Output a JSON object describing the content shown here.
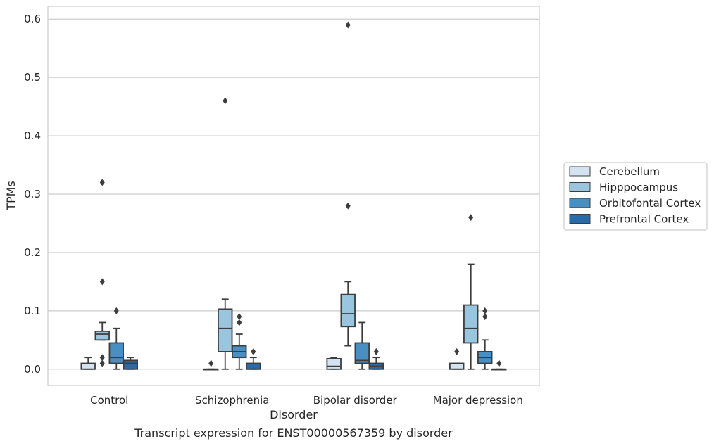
{
  "caption": "Transcript expression for ENST00000567359 by disorder",
  "chart_data": {
    "type": "box",
    "xlabel": "Disorder",
    "ylabel": "TPMs",
    "ylim": [
      -0.028,
      0.622
    ],
    "yticks": [
      0.0,
      0.1,
      0.2,
      0.3,
      0.4,
      0.5,
      0.6
    ],
    "ytick_labels": [
      "0.0",
      "0.1",
      "0.2",
      "0.3",
      "0.4",
      "0.5",
      "0.6"
    ],
    "grid": "horizontal",
    "legend_position": "right",
    "categories": [
      "Control",
      "Schizophrenia",
      "Bipolar disorder",
      "Major depression"
    ],
    "series": [
      {
        "name": "Cerebellum",
        "color": "#d4e3f1",
        "boxes": [
          {
            "q1": 0.0,
            "median": 0.0,
            "q3": 0.01,
            "whisker_low": 0.0,
            "whisker_high": 0.02,
            "outliers": []
          },
          {
            "q1": 0.0,
            "median": 0.0,
            "q3": 0.0,
            "whisker_low": 0.0,
            "whisker_high": 0.0,
            "outliers": [
              0.01
            ]
          },
          {
            "q1": 0.0,
            "median": 0.005,
            "q3": 0.018,
            "whisker_low": 0.0,
            "whisker_high": 0.02,
            "outliers": []
          },
          {
            "q1": 0.0,
            "median": 0.0,
            "q3": 0.01,
            "whisker_low": 0.0,
            "whisker_high": 0.01,
            "outliers": [
              0.03
            ]
          }
        ]
      },
      {
        "name": "Hipppocampus",
        "color": "#9ac5de",
        "boxes": [
          {
            "q1": 0.05,
            "median": 0.06,
            "q3": 0.065,
            "whisker_low": 0.05,
            "whisker_high": 0.08,
            "outliers": [
              0.01,
              0.02,
              0.15,
              0.32
            ]
          },
          {
            "q1": 0.03,
            "median": 0.07,
            "q3": 0.103,
            "whisker_low": 0.0,
            "whisker_high": 0.12,
            "outliers": [
              0.46
            ]
          },
          {
            "q1": 0.073,
            "median": 0.095,
            "q3": 0.128,
            "whisker_low": 0.04,
            "whisker_high": 0.15,
            "outliers": [
              0.28,
              0.59
            ]
          },
          {
            "q1": 0.045,
            "median": 0.07,
            "q3": 0.11,
            "whisker_low": 0.0,
            "whisker_high": 0.18,
            "outliers": [
              0.26
            ]
          }
        ]
      },
      {
        "name": "Orbitofontal Cortex",
        "color": "#4a8fc2",
        "boxes": [
          {
            "q1": 0.01,
            "median": 0.02,
            "q3": 0.045,
            "whisker_low": 0.0,
            "whisker_high": 0.07,
            "outliers": [
              0.1
            ]
          },
          {
            "q1": 0.02,
            "median": 0.03,
            "q3": 0.04,
            "whisker_low": 0.0,
            "whisker_high": 0.06,
            "outliers": [
              0.08,
              0.09
            ]
          },
          {
            "q1": 0.01,
            "median": 0.015,
            "q3": 0.045,
            "whisker_low": 0.0,
            "whisker_high": 0.08,
            "outliers": []
          },
          {
            "q1": 0.01,
            "median": 0.02,
            "q3": 0.03,
            "whisker_low": 0.0,
            "whisker_high": 0.05,
            "outliers": [
              0.09,
              0.1
            ]
          }
        ]
      },
      {
        "name": "Prefrontal Cortex",
        "color": "#2b6aa8",
        "boxes": [
          {
            "q1": 0.0,
            "median": 0.01,
            "q3": 0.015,
            "whisker_low": 0.0,
            "whisker_high": 0.02,
            "outliers": []
          },
          {
            "q1": 0.0,
            "median": 0.0,
            "q3": 0.01,
            "whisker_low": 0.0,
            "whisker_high": 0.02,
            "outliers": [
              0.03
            ]
          },
          {
            "q1": 0.0,
            "median": 0.005,
            "q3": 0.01,
            "whisker_low": 0.0,
            "whisker_high": 0.02,
            "outliers": [
              0.03
            ]
          },
          {
            "q1": 0.0,
            "median": 0.0,
            "q3": 0.0,
            "whisker_low": 0.0,
            "whisker_high": 0.0,
            "outliers": [
              0.01
            ]
          }
        ]
      }
    ]
  }
}
